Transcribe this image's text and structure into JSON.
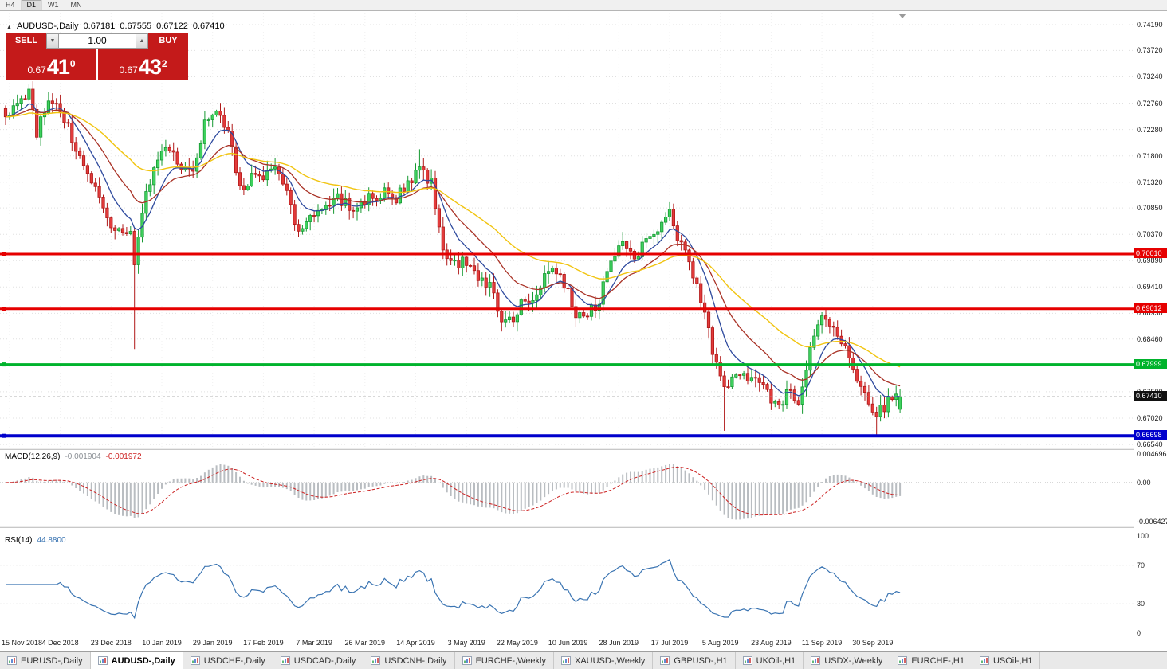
{
  "toolbar": {
    "periods": [
      "H4",
      "D1",
      "W1",
      "MN"
    ],
    "active_period": "D1"
  },
  "symbol_info": {
    "title": "AUDUSD-,Daily",
    "open": "0.67181",
    "high": "0.67555",
    "low": "0.67122",
    "close": "0.67410"
  },
  "icons": {
    "collapse": "▲",
    "volume_down": "▼",
    "volume_up": "▲"
  },
  "one_click": {
    "sell_label": "SELL",
    "buy_label": "BUY",
    "volume": "1.00",
    "bid_prefix": "0.67",
    "bid_big": "41",
    "bid_sup": "0",
    "ask_prefix": "0.67",
    "ask_big": "43",
    "ask_sup": "2"
  },
  "price_axis": {
    "top_price": 0.7419,
    "ticks": [
      "0.74190",
      "0.73720",
      "0.73240",
      "0.72760",
      "0.72280",
      "0.71800",
      "0.71320",
      "0.70850",
      "0.70370",
      "0.69890",
      "0.69410",
      "0.68930",
      "0.68460",
      "0.67980",
      "0.67500",
      "0.67020",
      "0.66540"
    ]
  },
  "levels": [
    {
      "price": 0.7001,
      "label": "0.70010",
      "color": "#e60000",
      "width": 3
    },
    {
      "price": 0.69012,
      "label": "0.69012",
      "color": "#e60000",
      "width": 3
    },
    {
      "price": 0.67999,
      "label": "0.67999",
      "color": "#00b32c",
      "width": 3
    },
    {
      "price": 0.66698,
      "label": "0.66698",
      "color": "#0000cc",
      "width": 4
    }
  ],
  "current_price": {
    "value": 0.6741,
    "label": "0.67410",
    "tag_bg": "#111111"
  },
  "macd": {
    "label": "MACD(12,26,9)",
    "value_main": "-0.001904",
    "value_signal": "-0.001972",
    "axis": [
      "0.004696",
      "0.00",
      "-0.006427"
    ],
    "params": {
      "fast": 12,
      "slow": 26,
      "signal": 9
    }
  },
  "rsi": {
    "label": "RSI(14)",
    "value": "44.8800",
    "period": 14,
    "axis": [
      "100",
      "70",
      "30",
      "0"
    ],
    "levels": [
      70,
      30
    ]
  },
  "dates": [
    "15 Nov 2018",
    "4 Dec 2018",
    "23 Dec 2018",
    "10 Jan 2019",
    "29 Jan 2019",
    "17 Feb 2019",
    "7 Mar 2019",
    "26 Mar 2019",
    "14 Apr 2019",
    "3 May 2019",
    "22 May 2019",
    "10 Jun 2019",
    "28 Jun 2019",
    "17 Jul 2019",
    "5 Aug 2019",
    "23 Aug 2019",
    "11 Sep 2019",
    "30 Sep 2019"
  ],
  "tabs": {
    "items": [
      "EURUSD-,Daily",
      "AUDUSD-,Daily",
      "USDCHF-,Daily",
      "USDCAD-,Daily",
      "USDCNH-,Daily",
      "EURCHF-,Weekly",
      "XAUUSD-,Weekly",
      "GBPUSD-,H1",
      "UKOil-,H1",
      "USDX-,Weekly",
      "EURCHF-,H1",
      "USOil-,H1"
    ],
    "active": "AUDUSD-,Daily"
  },
  "colors": {
    "candle_up_fill": "#3fd15e",
    "candle_up_stroke": "#169932",
    "candle_down_fill": "#e23b3b",
    "candle_down_stroke": "#b01818",
    "ma_fast": "#2e4a9e",
    "ma_mid": "#a93226",
    "ma_slow": "#f1c40f",
    "macd_hist": "#b9bdc1",
    "macd_signal": "#cc2222",
    "rsi_line": "#3a74b2",
    "grid": "#e0e0e0",
    "sell_buy_red": "#c41a1a"
  },
  "chart_data": {
    "type": "candlestick",
    "symbol": "AUDUSD-",
    "timeframe": "Daily",
    "n_candles": 230,
    "ohlc_current": {
      "open": 0.67181,
      "high": 0.67555,
      "low": 0.67122,
      "close": 0.6741
    },
    "anchors": [
      [
        0,
        0.7245
      ],
      [
        3,
        0.7281
      ],
      [
        6,
        0.7296
      ],
      [
        8,
        0.7216
      ],
      [
        11,
        0.7288
      ],
      [
        14,
        0.7267
      ],
      [
        17,
        0.7209
      ],
      [
        20,
        0.7172
      ],
      [
        23,
        0.7114
      ],
      [
        26,
        0.7056
      ],
      [
        29,
        0.7049
      ],
      [
        32,
        0.7042
      ],
      [
        33,
        0.699
      ],
      [
        34,
        0.704
      ],
      [
        35,
        0.7085
      ],
      [
        38,
        0.7151
      ],
      [
        41,
        0.7194
      ],
      [
        44,
        0.7172
      ],
      [
        48,
        0.7151
      ],
      [
        51,
        0.7245
      ],
      [
        54,
        0.7252
      ],
      [
        57,
        0.7223
      ],
      [
        60,
        0.7121
      ],
      [
        63,
        0.7143
      ],
      [
        66,
        0.7136
      ],
      [
        69,
        0.7158
      ],
      [
        72,
        0.7107
      ],
      [
        75,
        0.7042
      ],
      [
        78,
        0.7078
      ],
      [
        81,
        0.707
      ],
      [
        84,
        0.7107
      ],
      [
        87,
        0.7092
      ],
      [
        90,
        0.7085
      ],
      [
        93,
        0.71
      ],
      [
        97,
        0.7114
      ],
      [
        100,
        0.71
      ],
      [
        103,
        0.7129
      ],
      [
        106,
        0.7165
      ],
      [
        109,
        0.7129
      ],
      [
        112,
        0.7013
      ],
      [
        115,
        0.6984
      ],
      [
        118,
        0.6991
      ],
      [
        121,
        0.6962
      ],
      [
        124,
        0.694
      ],
      [
        127,
        0.6882
      ],
      [
        130,
        0.6889
      ],
      [
        133,
        0.6918
      ],
      [
        136,
        0.6925
      ],
      [
        139,
        0.6969
      ],
      [
        142,
        0.6962
      ],
      [
        146,
        0.6896
      ],
      [
        149,
        0.6889
      ],
      [
        152,
        0.6918
      ],
      [
        155,
        0.6998
      ],
      [
        158,
        0.7013
      ],
      [
        161,
        0.6991
      ],
      [
        164,
        0.7028
      ],
      [
        167,
        0.7042
      ],
      [
        170,
        0.7071
      ],
      [
        173,
        0.7013
      ],
      [
        176,
        0.6969
      ],
      [
        179,
        0.6896
      ],
      [
        182,
        0.6795
      ],
      [
        184,
        0.6751
      ],
      [
        187,
        0.678
      ],
      [
        190,
        0.6773
      ],
      [
        193,
        0.6766
      ],
      [
        197,
        0.6722
      ],
      [
        200,
        0.6744
      ],
      [
        203,
        0.6737
      ],
      [
        206,
        0.6824
      ],
      [
        209,
        0.6882
      ],
      [
        212,
        0.686
      ],
      [
        215,
        0.6824
      ],
      [
        218,
        0.678
      ],
      [
        221,
        0.6737
      ],
      [
        223,
        0.6708
      ],
      [
        226,
        0.673
      ],
      [
        229,
        0.6741
      ]
    ],
    "wick_events": [
      {
        "i": 6,
        "high": 0.731
      },
      {
        "i": 33,
        "low": 0.6828
      },
      {
        "i": 106,
        "high": 0.7192
      },
      {
        "i": 184,
        "low": 0.6679
      },
      {
        "i": 209,
        "high": 0.6895
      },
      {
        "i": 223,
        "low": 0.667
      }
    ],
    "date_ticks": [
      1,
      14,
      27,
      40,
      53,
      66,
      79,
      92,
      105,
      118,
      131,
      144,
      157,
      170,
      183,
      196,
      209,
      222
    ],
    "moving_averages": [
      {
        "name": "fast",
        "period": 9,
        "color_key": "ma_fast"
      },
      {
        "name": "medium",
        "period": 20,
        "color_key": "ma_mid"
      },
      {
        "name": "slow",
        "period": 45,
        "color_key": "ma_slow"
      }
    ]
  }
}
